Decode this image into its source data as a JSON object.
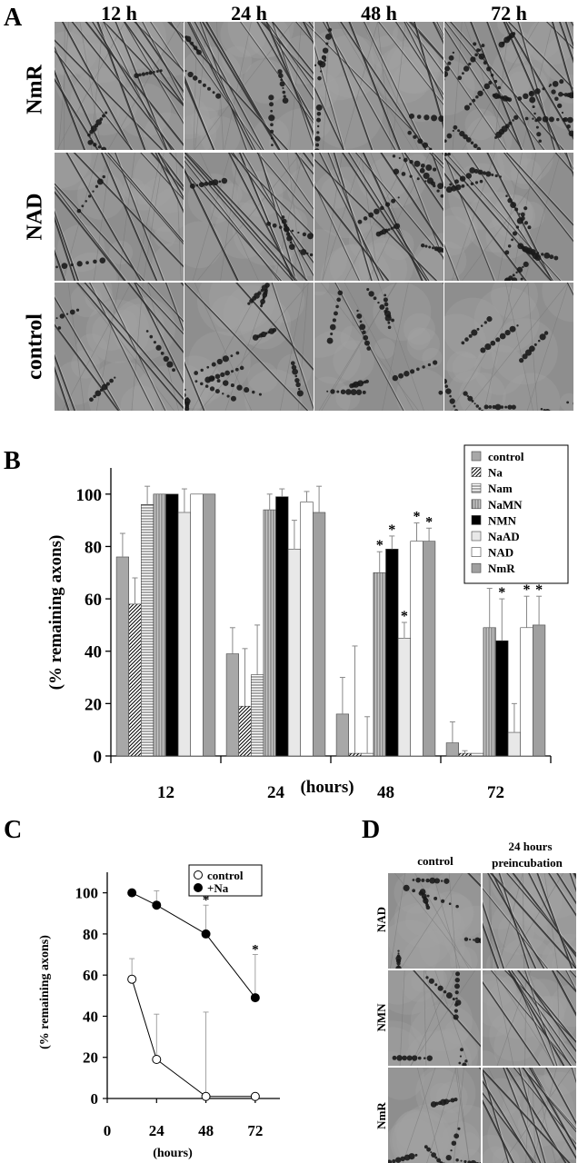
{
  "panelA": {
    "letter": "A",
    "columns": [
      "12 h",
      "24 h",
      "48 h",
      "72 h"
    ],
    "rows": [
      "NmR",
      "NAD",
      "control"
    ]
  },
  "panelB": {
    "letter": "B",
    "legend": [
      "control",
      "Na",
      "Nam",
      "NaMN",
      "NMN",
      "NaAD",
      "NAD",
      "NmR"
    ],
    "y_label": "(% remaining axons)",
    "x_label": "(hours)"
  },
  "panelC": {
    "letter": "C",
    "legend": [
      "control",
      "+Na"
    ],
    "y_label": "(% remaining axons)",
    "x_label": "(hours)"
  },
  "panelD": {
    "letter": "D",
    "col1": "control",
    "col2_line1": "24 hours",
    "col2_line2": "preincubation",
    "rows": [
      "NAD",
      "NMN",
      "NmR"
    ]
  },
  "chart_data": [
    {
      "type": "bar",
      "categories": [
        "12",
        "24",
        "48",
        "72"
      ],
      "ylim": [
        0,
        110
      ],
      "yticks": [
        0,
        20,
        40,
        60,
        80,
        100
      ],
      "ylabel": "(% remaining axons)",
      "xlabel": "(hours)",
      "legend_position": "top-right",
      "series": [
        {
          "name": "control",
          "values": [
            76,
            39,
            16,
            5
          ],
          "errors": [
            9,
            10,
            14,
            8
          ],
          "sig": [
            false,
            false,
            false,
            false
          ],
          "fill": "#a8a8a8",
          "pattern": "solid"
        },
        {
          "name": "Na",
          "values": [
            58,
            19,
            1,
            1
          ],
          "errors": [
            10,
            22,
            41,
            1
          ],
          "sig": [
            false,
            false,
            false,
            false
          ],
          "fill": "#ffffff",
          "pattern": "diag"
        },
        {
          "name": "Nam",
          "values": [
            96,
            31,
            1,
            1
          ],
          "errors": [
            7,
            19,
            14,
            0
          ],
          "sig": [
            false,
            false,
            false,
            false
          ],
          "fill": "#ffffff",
          "pattern": "hlines"
        },
        {
          "name": "NaMN",
          "values": [
            100,
            94,
            70,
            49
          ],
          "errors": [
            0,
            6,
            8,
            15
          ],
          "sig": [
            false,
            false,
            true,
            true
          ],
          "fill": "#b0b0b0",
          "pattern": "vlines"
        },
        {
          "name": "NMN",
          "values": [
            100,
            99,
            79,
            44
          ],
          "errors": [
            0,
            3,
            5,
            16
          ],
          "sig": [
            false,
            false,
            true,
            true
          ],
          "fill": "#000000",
          "pattern": "solid"
        },
        {
          "name": "NaAD",
          "values": [
            93,
            79,
            45,
            9
          ],
          "errors": [
            9,
            11,
            6,
            11
          ],
          "sig": [
            false,
            false,
            true,
            false
          ],
          "fill": "#e8e8e8",
          "pattern": "solid"
        },
        {
          "name": "NAD",
          "values": [
            100,
            97,
            82,
            49
          ],
          "errors": [
            0,
            4,
            7,
            12
          ],
          "sig": [
            false,
            false,
            true,
            true
          ],
          "fill": "#ffffff",
          "pattern": "solid"
        },
        {
          "name": "NmR",
          "values": [
            100,
            93,
            82,
            50
          ],
          "errors": [
            0,
            10,
            5,
            11
          ],
          "sig": [
            false,
            false,
            true,
            true
          ],
          "fill": "#a0a0a0",
          "pattern": "solid"
        }
      ]
    },
    {
      "type": "line",
      "x": [
        12,
        24,
        48,
        72
      ],
      "xticks": [
        0,
        24,
        48,
        72
      ],
      "xlim": [
        0,
        84
      ],
      "ylim": [
        0,
        110
      ],
      "yticks": [
        0,
        20,
        40,
        60,
        80,
        100
      ],
      "ylabel": "(% remaining axons)",
      "xlabel": "(hours)",
      "legend_position": "top-right",
      "series": [
        {
          "name": "control",
          "values": [
            58,
            19,
            1,
            1
          ],
          "errors": [
            10,
            22,
            41,
            0
          ],
          "sig": [
            false,
            false,
            false,
            false
          ],
          "marker": "open"
        },
        {
          "name": "+Na",
          "values": [
            100,
            94,
            80,
            49
          ],
          "errors": [
            0,
            7,
            14,
            21
          ],
          "sig": [
            false,
            false,
            true,
            true
          ],
          "marker": "filled"
        }
      ]
    }
  ]
}
